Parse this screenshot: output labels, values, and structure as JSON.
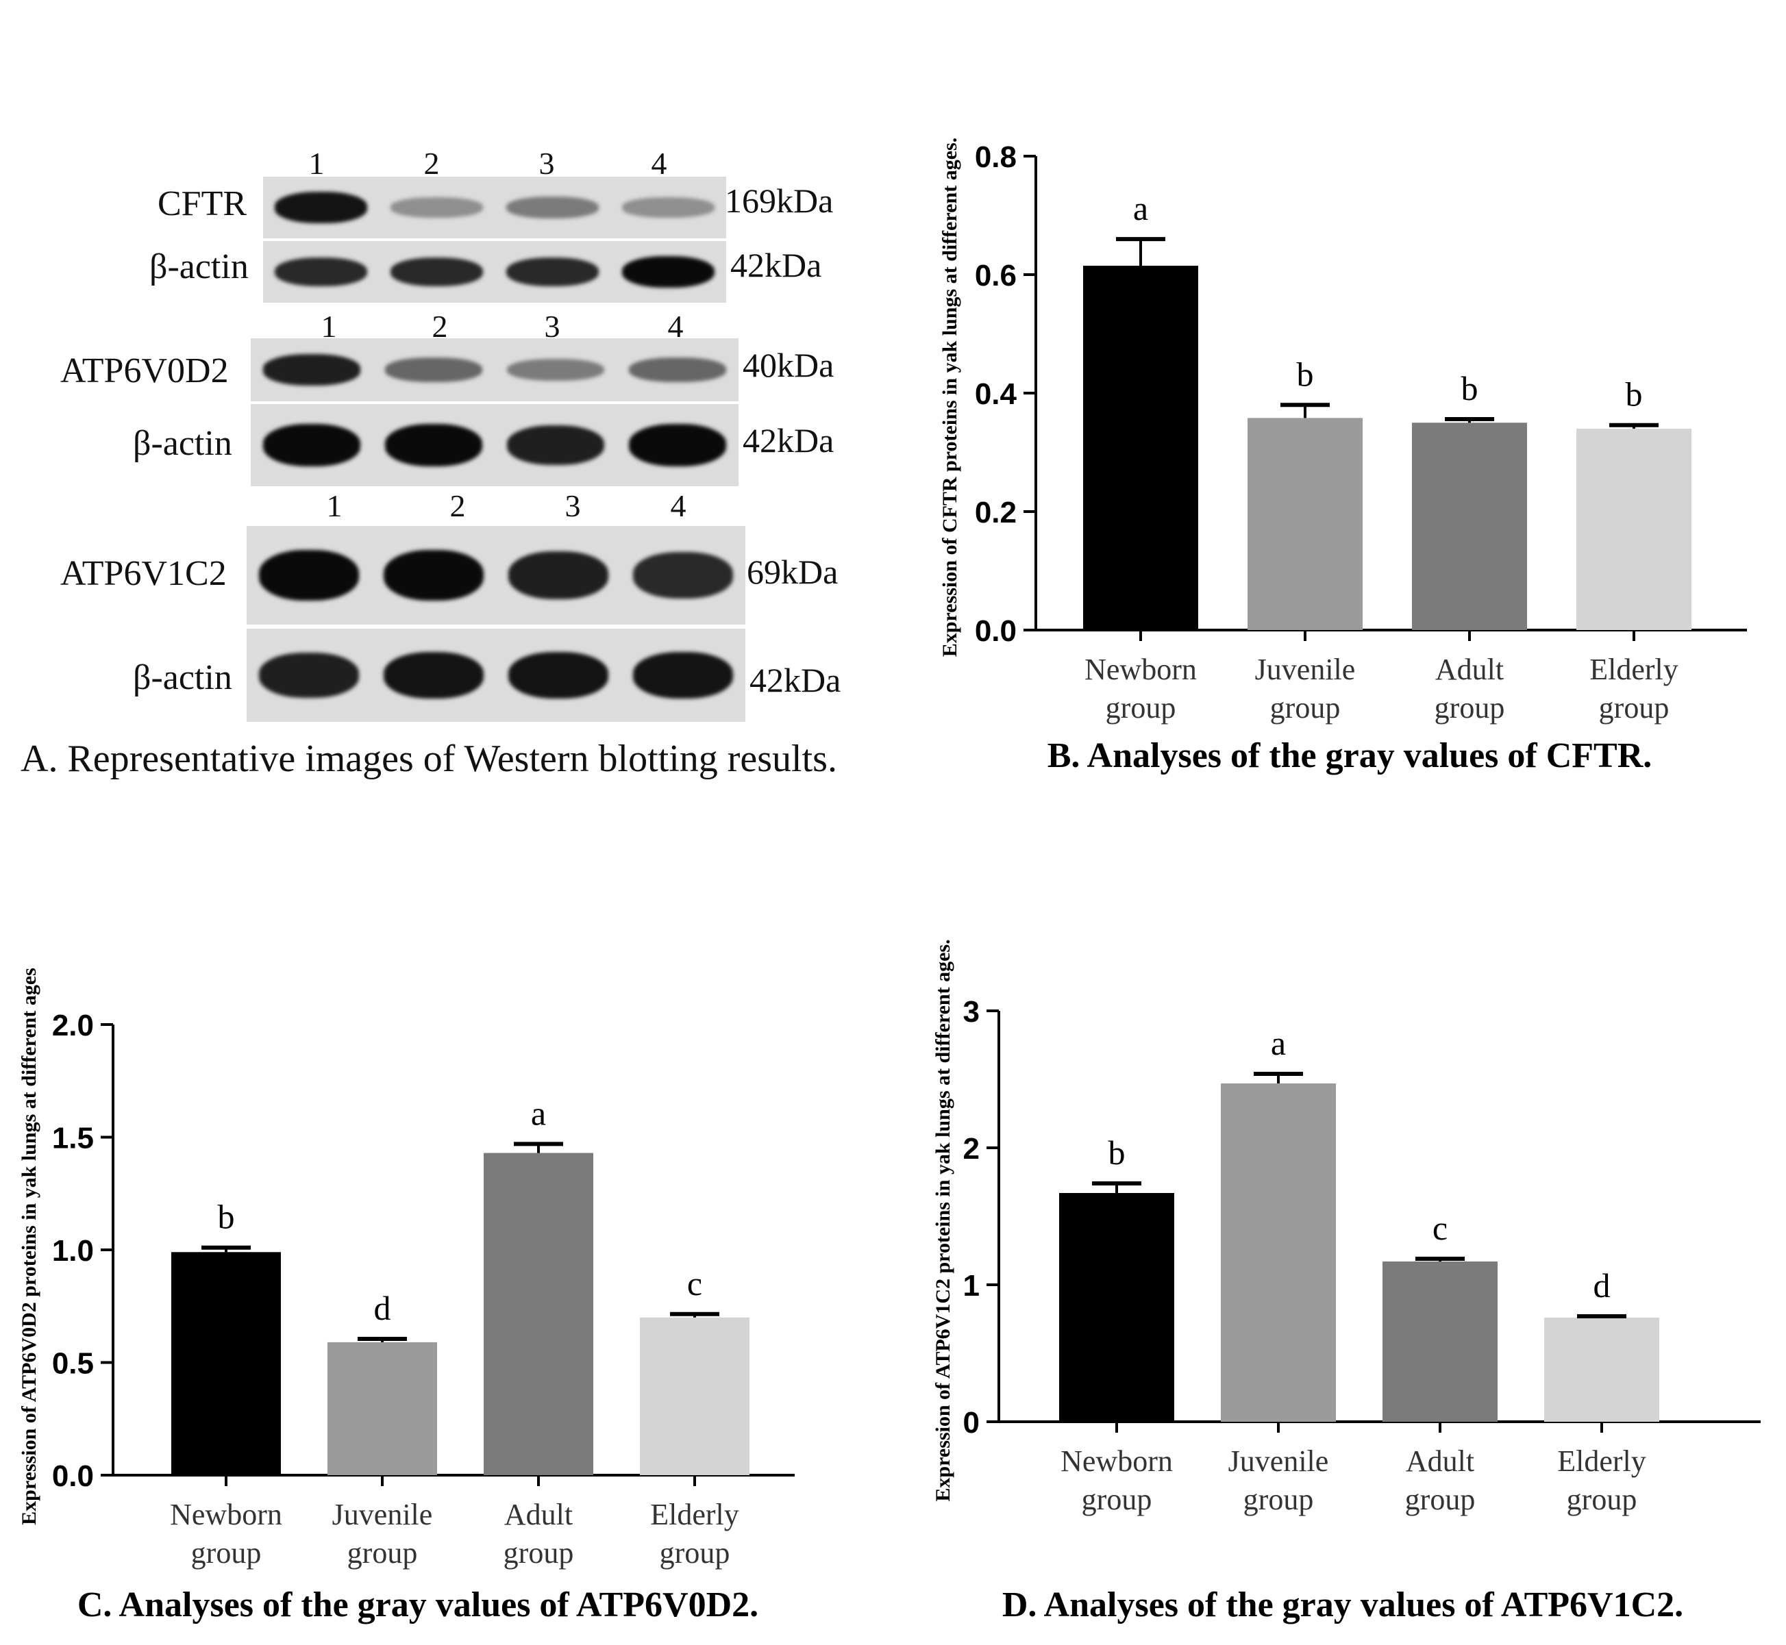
{
  "panel_a": {
    "caption": "A. Representative images of Western blotting results.",
    "blots": [
      {
        "lanes": [
          "1",
          "2",
          "3",
          "4"
        ],
        "rows": [
          {
            "label": "CFTR",
            "kda": "169kDa",
            "intensity": [
              0.95,
              0.35,
              0.45,
              0.35
            ]
          },
          {
            "label": "β-actin",
            "kda": "42kDa",
            "intensity": [
              0.85,
              0.85,
              0.85,
              1.0
            ]
          }
        ]
      },
      {
        "lanes": [
          "1",
          "2",
          "3",
          "4"
        ],
        "rows": [
          {
            "label": "ATP6V0D2",
            "kda": "40kDa",
            "intensity": [
              0.9,
              0.55,
              0.45,
              0.55
            ]
          },
          {
            "label": "β-actin",
            "kda": "42kDa",
            "intensity": [
              1.0,
              1.0,
              0.9,
              1.0
            ]
          }
        ]
      },
      {
        "lanes": [
          "1",
          "2",
          "3",
          "4"
        ],
        "rows": [
          {
            "label": "ATP6V1C2",
            "kda": "69kDa",
            "intensity": [
              1.0,
              1.0,
              0.9,
              0.85
            ]
          },
          {
            "label": "β-actin",
            "kda": "42kDa",
            "intensity": [
              0.9,
              0.95,
              0.95,
              0.95
            ]
          }
        ]
      }
    ]
  },
  "chart_data": [
    {
      "id": "B",
      "type": "bar",
      "caption": "B. Analyses of the gray values of CFTR.",
      "ylabel": "Expression of CFTR proteins in yak lungs at different ages.",
      "categories": [
        [
          "Newborn",
          "group"
        ],
        [
          "Juvenile",
          "group"
        ],
        [
          "Adult",
          "group"
        ],
        [
          "Elderly",
          "group"
        ]
      ],
      "values": [
        0.615,
        0.358,
        0.35,
        0.34
      ],
      "errors": [
        0.045,
        0.022,
        0.006,
        0.006
      ],
      "letters": [
        "a",
        "b",
        "b",
        "b"
      ],
      "ylim": [
        0,
        0.8
      ],
      "yticks": [
        "0.0",
        "0.2",
        "0.4",
        "0.6",
        "0.8"
      ],
      "ytick_values": [
        0,
        0.2,
        0.4,
        0.6,
        0.8
      ],
      "colors": [
        "#000000",
        "#9b9b9b",
        "#7b7b7b",
        "#d4d4d4"
      ]
    },
    {
      "id": "C",
      "type": "bar",
      "caption": "C. Analyses of the gray values of ATP6V0D2.",
      "ylabel": "Expression of ATP6V0D2 proteins in yak lungs at different ages",
      "categories": [
        [
          "Newborn",
          "group"
        ],
        [
          "Juvenile",
          "group"
        ],
        [
          "Adult",
          "group"
        ],
        [
          "Elderly",
          "group"
        ]
      ],
      "values": [
        0.99,
        0.59,
        1.43,
        0.7
      ],
      "errors": [
        0.02,
        0.015,
        0.04,
        0.015
      ],
      "letters": [
        "b",
        "d",
        "a",
        "c"
      ],
      "ylim": [
        0,
        2.0
      ],
      "yticks": [
        "0.0",
        "0.5",
        "1.0",
        "1.5",
        "2.0"
      ],
      "ytick_values": [
        0,
        0.5,
        1.0,
        1.5,
        2.0
      ],
      "colors": [
        "#000000",
        "#9b9b9b",
        "#7b7b7b",
        "#d4d4d4"
      ]
    },
    {
      "id": "D",
      "type": "bar",
      "caption": "D. Analyses of the gray values of ATP6V1C2.",
      "ylabel": "Expression of ATP6V1C2 proteins in yak lungs at different ages.",
      "categories": [
        [
          "Newborn",
          "group"
        ],
        [
          "Juvenile",
          "group"
        ],
        [
          "Adult",
          "group"
        ],
        [
          "Elderly",
          "group"
        ]
      ],
      "values": [
        1.67,
        2.47,
        1.17,
        0.76
      ],
      "errors": [
        0.07,
        0.07,
        0.02,
        0.01
      ],
      "letters": [
        "b",
        "a",
        "c",
        "d"
      ],
      "ylim": [
        0,
        3
      ],
      "yticks": [
        "0",
        "1",
        "2",
        "3"
      ],
      "ytick_values": [
        0,
        1,
        2,
        3
      ],
      "colors": [
        "#000000",
        "#9b9b9b",
        "#7b7b7b",
        "#d4d4d4"
      ]
    }
  ]
}
